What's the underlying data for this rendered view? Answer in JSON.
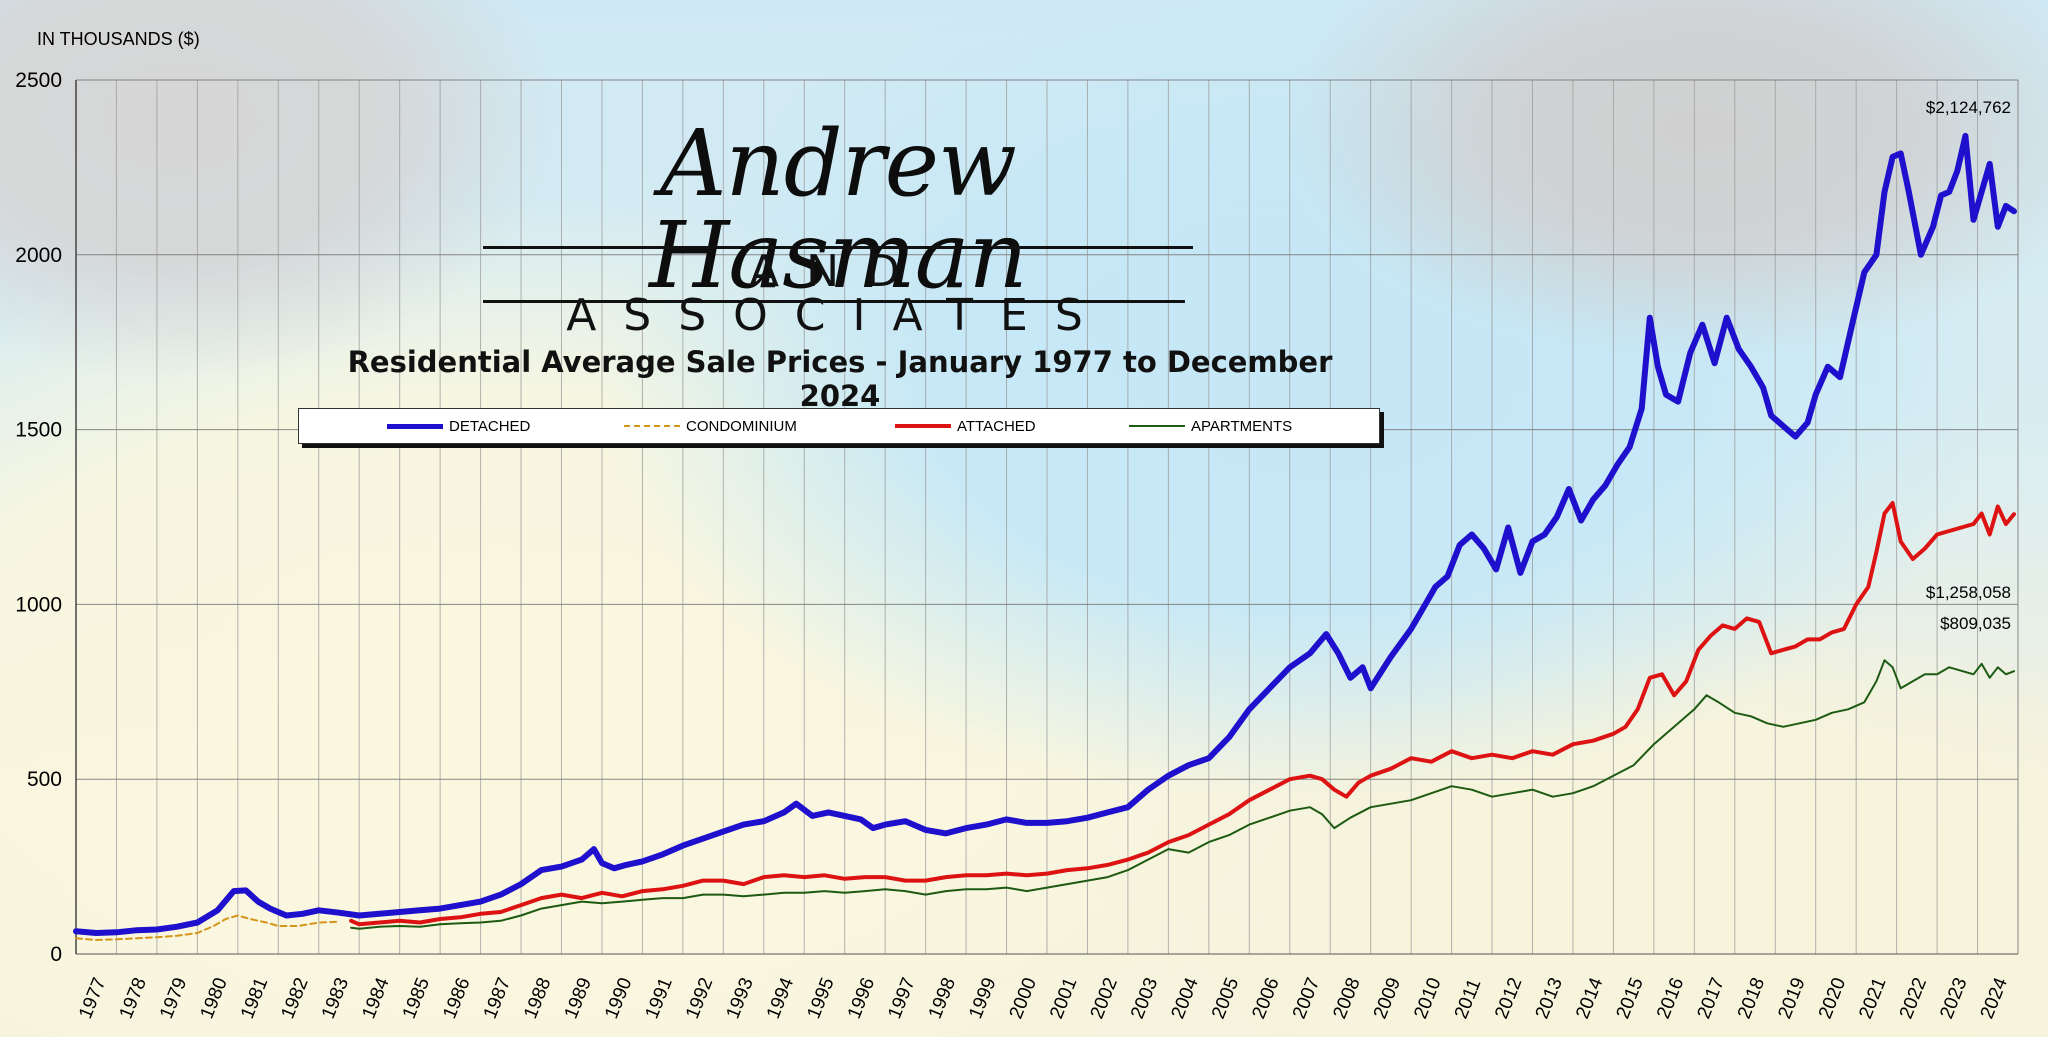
{
  "unit_label": "IN THOUSANDS ($)",
  "logo": {
    "name": "Andrew Hasman",
    "tagline": "AND ASSOCIATES"
  },
  "colors": {
    "detached": "#1e10cc",
    "condominium": "#d4961a",
    "attached": "#dd1212",
    "apartments": "#1d5a12"
  },
  "chart_data": {
    "type": "line",
    "title": "Residential Average Sale Prices - January 1977 to December 2024",
    "xlabel": "",
    "ylabel": "IN THOUSANDS ($)",
    "xlim": [
      1977,
      2025
    ],
    "ylim": [
      0,
      2500
    ],
    "yticks": [
      "0",
      "500",
      "1000",
      "1500",
      "2000",
      "2500"
    ],
    "xticks": [
      "1977",
      "1978",
      "1979",
      "1980",
      "1981",
      "1982",
      "1983",
      "1984",
      "1985",
      "1986",
      "1987",
      "1988",
      "1989",
      "1990",
      "1991",
      "1992",
      "1993",
      "1994",
      "1995",
      "1996",
      "1997",
      "1998",
      "1999",
      "2000",
      "2001",
      "2002",
      "2003",
      "2004",
      "2005",
      "2006",
      "2007",
      "2008",
      "2009",
      "2010",
      "2011",
      "2012",
      "2013",
      "2014",
      "2015",
      "2016",
      "2017",
      "2018",
      "2019",
      "2020",
      "2021",
      "2022",
      "2023",
      "2024"
    ],
    "grid": true,
    "legend_position": "top-center",
    "series": [
      {
        "name": "DETACHED",
        "style": "thick",
        "x": [
          1977.0,
          1977.5,
          1978.0,
          1978.5,
          1979.0,
          1979.5,
          1980.0,
          1980.5,
          1980.9,
          1981.2,
          1981.5,
          1981.8,
          1982.2,
          1982.6,
          1983.0,
          1983.5,
          1984.0,
          1984.5,
          1985.0,
          1985.5,
          1986.0,
          1986.5,
          1987.0,
          1987.5,
          1988.0,
          1988.5,
          1989.0,
          1989.5,
          1989.8,
          1990.0,
          1990.3,
          1990.6,
          1991.0,
          1991.5,
          1992.0,
          1992.5,
          1993.0,
          1993.5,
          1994.0,
          1994.5,
          1994.8,
          1995.2,
          1995.6,
          1996.0,
          1996.4,
          1996.7,
          1997.0,
          1997.5,
          1998.0,
          1998.5,
          1999.0,
          1999.5,
          2000.0,
          2000.5,
          2001.0,
          2001.5,
          2002.0,
          2002.5,
          2003.0,
          2003.5,
          2004.0,
          2004.5,
          2005.0,
          2005.5,
          2006.0,
          2006.5,
          2007.0,
          2007.5,
          2007.9,
          2008.2,
          2008.5,
          2008.8,
          2009.0,
          2009.5,
          2010.0,
          2010.3,
          2010.6,
          2010.9,
          2011.2,
          2011.5,
          2011.8,
          2012.1,
          2012.4,
          2012.7,
          2013.0,
          2013.3,
          2013.6,
          2013.9,
          2014.2,
          2014.5,
          2014.8,
          2015.1,
          2015.4,
          2015.7,
          2015.9,
          2016.1,
          2016.3,
          2016.6,
          2016.9,
          2017.2,
          2017.5,
          2017.8,
          2018.1,
          2018.4,
          2018.7,
          2018.9,
          2019.2,
          2019.5,
          2019.8,
          2020.0,
          2020.3,
          2020.6,
          2020.9,
          2021.2,
          2021.5,
          2021.7,
          2021.9,
          2022.1,
          2022.3,
          2022.6,
          2022.9,
          2023.1,
          2023.3,
          2023.5,
          2023.7,
          2023.9,
          2024.1,
          2024.3,
          2024.5,
          2024.7,
          2024.9
        ],
        "y": [
          65,
          60,
          62,
          68,
          70,
          78,
          90,
          125,
          180,
          182,
          150,
          130,
          110,
          115,
          125,
          118,
          110,
          115,
          120,
          125,
          130,
          140,
          150,
          170,
          200,
          240,
          250,
          270,
          300,
          260,
          245,
          255,
          265,
          285,
          310,
          330,
          350,
          370,
          380,
          405,
          430,
          395,
          405,
          395,
          385,
          360,
          370,
          380,
          355,
          345,
          360,
          370,
          385,
          375,
          375,
          380,
          390,
          405,
          420,
          470,
          510,
          540,
          560,
          620,
          700,
          760,
          820,
          860,
          915,
          860,
          790,
          820,
          760,
          850,
          930,
          990,
          1050,
          1080,
          1170,
          1200,
          1160,
          1100,
          1220,
          1090,
          1180,
          1200,
          1250,
          1330,
          1240,
          1300,
          1340,
          1400,
          1450,
          1560,
          1820,
          1680,
          1600,
          1580,
          1720,
          1800,
          1690,
          1820,
          1730,
          1680,
          1620,
          1540,
          1510,
          1480,
          1520,
          1600,
          1680,
          1650,
          1800,
          1950,
          2000,
          2180,
          2280,
          2290,
          2180,
          2000,
          2080,
          2170,
          2180,
          2240,
          2340,
          2100,
          2180,
          2260,
          2080,
          2140,
          2124.8
        ]
      },
      {
        "name": "CONDOMINIUM",
        "style": "dashed",
        "x": [
          1977.0,
          1977.5,
          1978.0,
          1978.5,
          1979.0,
          1979.5,
          1980.0,
          1980.4,
          1980.7,
          1981.0,
          1981.3,
          1981.7,
          1982.0,
          1982.5,
          1983.0,
          1983.5
        ],
        "y": [
          45,
          40,
          42,
          45,
          48,
          52,
          60,
          80,
          100,
          110,
          100,
          90,
          80,
          80,
          90,
          92
        ]
      },
      {
        "name": "ATTACHED",
        "style": "medium",
        "x": [
          1983.8,
          1984.0,
          1984.5,
          1985.0,
          1985.5,
          1986.0,
          1986.5,
          1987.0,
          1987.5,
          1988.0,
          1988.5,
          1989.0,
          1989.5,
          1990.0,
          1990.5,
          1991.0,
          1991.5,
          1992.0,
          1992.5,
          1993.0,
          1993.5,
          1994.0,
          1994.5,
          1995.0,
          1995.5,
          1996.0,
          1996.5,
          1997.0,
          1997.5,
          1998.0,
          1998.5,
          1999.0,
          1999.5,
          2000.0,
          2000.5,
          2001.0,
          2001.5,
          2002.0,
          2002.5,
          2003.0,
          2003.5,
          2004.0,
          2004.5,
          2005.0,
          2005.5,
          2006.0,
          2006.5,
          2007.0,
          2007.5,
          2007.8,
          2008.1,
          2008.4,
          2008.7,
          2009.0,
          2009.5,
          2010.0,
          2010.5,
          2011.0,
          2011.5,
          2012.0,
          2012.5,
          2013.0,
          2013.5,
          2014.0,
          2014.5,
          2015.0,
          2015.3,
          2015.6,
          2015.9,
          2016.2,
          2016.5,
          2016.8,
          2017.1,
          2017.4,
          2017.7,
          2018.0,
          2018.3,
          2018.6,
          2018.9,
          2019.2,
          2019.5,
          2019.8,
          2020.1,
          2020.4,
          2020.7,
          2021.0,
          2021.3,
          2021.5,
          2021.7,
          2021.9,
          2022.1,
          2022.4,
          2022.7,
          2023.0,
          2023.3,
          2023.6,
          2023.9,
          2024.1,
          2024.3,
          2024.5,
          2024.7,
          2024.9
        ],
        "y": [
          95,
          85,
          90,
          95,
          90,
          100,
          105,
          115,
          120,
          140,
          160,
          170,
          160,
          175,
          165,
          180,
          185,
          195,
          210,
          210,
          200,
          220,
          225,
          220,
          225,
          215,
          220,
          220,
          210,
          210,
          220,
          225,
          225,
          230,
          225,
          230,
          240,
          245,
          255,
          270,
          290,
          320,
          340,
          370,
          400,
          440,
          470,
          500,
          510,
          500,
          470,
          450,
          490,
          510,
          530,
          560,
          550,
          580,
          560,
          570,
          560,
          580,
          570,
          600,
          610,
          630,
          650,
          700,
          790,
          800,
          740,
          780,
          870,
          910,
          940,
          930,
          960,
          950,
          860,
          870,
          880,
          900,
          900,
          920,
          930,
          1000,
          1050,
          1150,
          1260,
          1290,
          1180,
          1130,
          1160,
          1200,
          1210,
          1220,
          1230,
          1260,
          1200,
          1280,
          1230,
          1258.1
        ]
      },
      {
        "name": "APARTMENTS",
        "style": "thin",
        "x": [
          1983.8,
          1984.0,
          1984.5,
          1985.0,
          1985.5,
          1986.0,
          1986.5,
          1987.0,
          1987.5,
          1988.0,
          1988.5,
          1989.0,
          1989.5,
          1990.0,
          1990.5,
          1991.0,
          1991.5,
          1992.0,
          1992.5,
          1993.0,
          1993.5,
          1994.0,
          1994.5,
          1995.0,
          1995.5,
          1996.0,
          1996.5,
          1997.0,
          1997.5,
          1998.0,
          1998.5,
          1999.0,
          1999.5,
          2000.0,
          2000.5,
          2001.0,
          2001.5,
          2002.0,
          2002.5,
          2003.0,
          2003.5,
          2004.0,
          2004.5,
          2005.0,
          2005.5,
          2006.0,
          2006.5,
          2007.0,
          2007.5,
          2007.8,
          2008.1,
          2008.5,
          2009.0,
          2009.5,
          2010.0,
          2010.5,
          2011.0,
          2011.5,
          2012.0,
          2012.5,
          2013.0,
          2013.5,
          2014.0,
          2014.5,
          2015.0,
          2015.5,
          2016.0,
          2016.5,
          2017.0,
          2017.3,
          2017.6,
          2018.0,
          2018.4,
          2018.8,
          2019.2,
          2019.6,
          2020.0,
          2020.4,
          2020.8,
          2021.2,
          2021.5,
          2021.7,
          2021.9,
          2022.1,
          2022.4,
          2022.7,
          2023.0,
          2023.3,
          2023.6,
          2023.9,
          2024.1,
          2024.3,
          2024.5,
          2024.7,
          2024.9
        ],
        "y": [
          75,
          72,
          78,
          80,
          78,
          85,
          88,
          90,
          95,
          110,
          130,
          140,
          150,
          145,
          150,
          155,
          160,
          160,
          170,
          170,
          165,
          170,
          175,
          175,
          180,
          175,
          180,
          185,
          180,
          170,
          180,
          185,
          185,
          190,
          180,
          190,
          200,
          210,
          220,
          240,
          270,
          300,
          290,
          320,
          340,
          370,
          390,
          410,
          420,
          400,
          360,
          390,
          420,
          430,
          440,
          460,
          480,
          470,
          450,
          460,
          470,
          450,
          460,
          480,
          510,
          540,
          600,
          650,
          700,
          740,
          720,
          690,
          680,
          660,
          650,
          660,
          670,
          690,
          700,
          720,
          780,
          840,
          820,
          760,
          780,
          800,
          800,
          820,
          810,
          800,
          830,
          790,
          820,
          800,
          809.0
        ]
      }
    ],
    "annotations": [
      {
        "text": "$2,124,762",
        "x": 2024.9,
        "y": 2124.762,
        "series": "DETACHED"
      },
      {
        "text": "$1,258,058",
        "x": 2024.9,
        "y": 1258.058,
        "series": "ATTACHED"
      },
      {
        "text": "$809,035",
        "x": 2024.9,
        "y": 809.035,
        "series": "APARTMENTS"
      }
    ]
  }
}
